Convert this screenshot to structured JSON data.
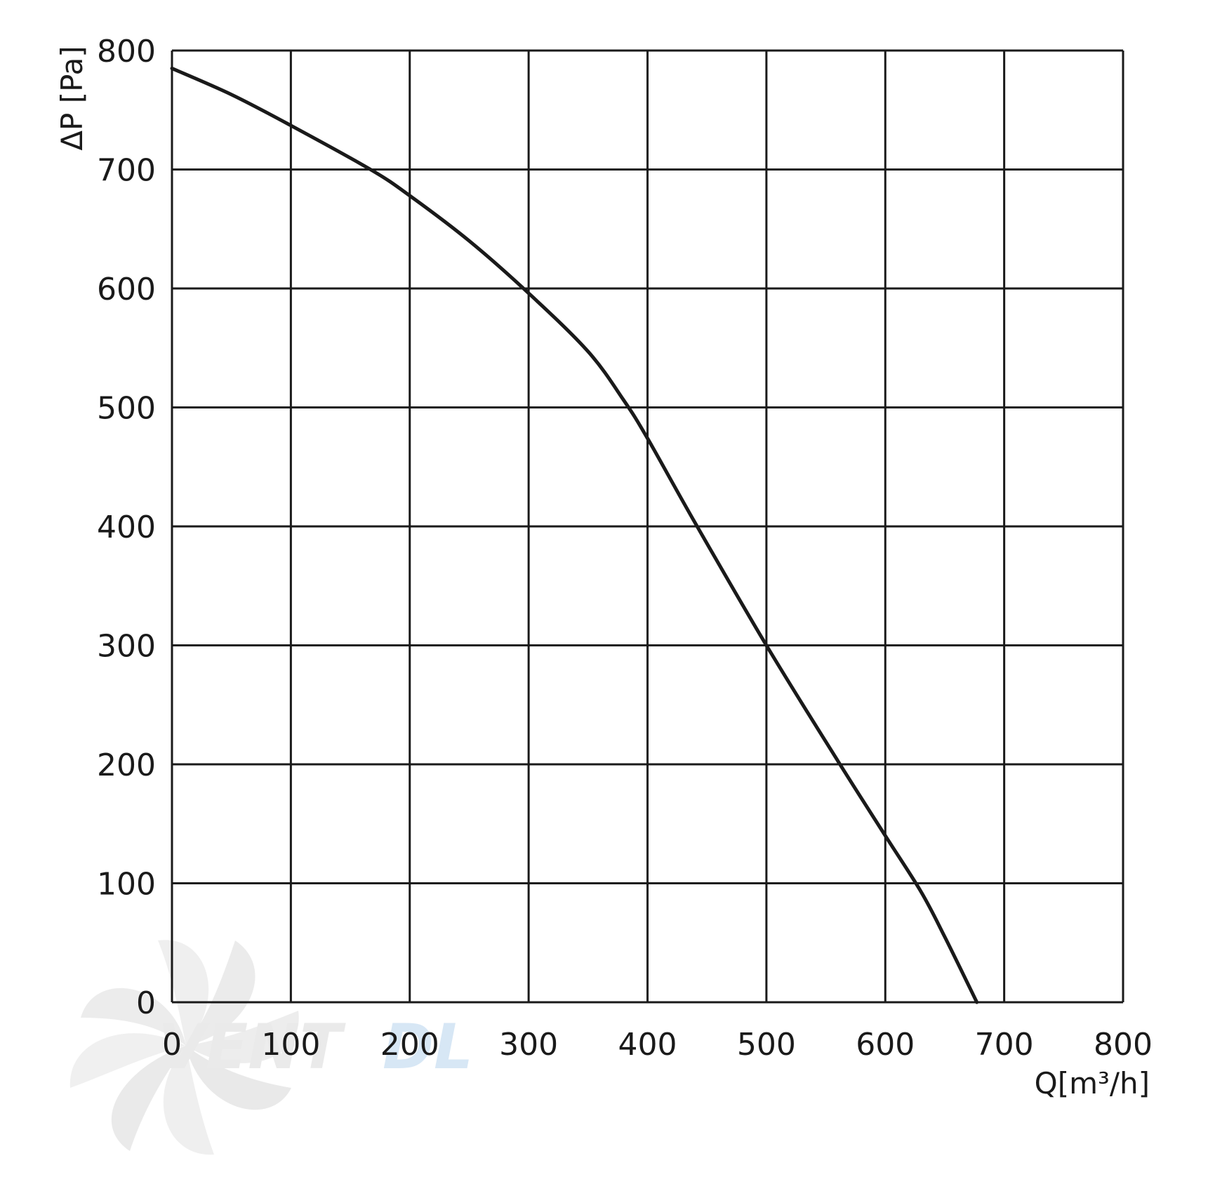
{
  "chart_data": {
    "type": "line",
    "xlabel": "Q[m³/h]",
    "ylabel": "ΔP [Pa]",
    "xlim": [
      0,
      800
    ],
    "ylim": [
      0,
      800
    ],
    "x_ticks": [
      0,
      100,
      200,
      300,
      400,
      500,
      600,
      700,
      800
    ],
    "y_ticks": [
      0,
      100,
      200,
      300,
      400,
      500,
      600,
      700,
      800
    ],
    "grid": true,
    "series": [
      {
        "color": "#1a1a1a",
        "points": [
          [
            0,
            785
          ],
          [
            50,
            763
          ],
          [
            100,
            737
          ],
          [
            167,
            700
          ],
          [
            200,
            678
          ],
          [
            250,
            640
          ],
          [
            300,
            596
          ],
          [
            350,
            547
          ],
          [
            380,
            506
          ],
          [
            400,
            474
          ],
          [
            440,
            403
          ],
          [
            500,
            300
          ],
          [
            560,
            203
          ],
          [
            600,
            140
          ],
          [
            630,
            93
          ],
          [
            650,
            55
          ],
          [
            677,
            0
          ]
        ]
      }
    ],
    "colors": {
      "grid": "#1a1a1a",
      "curve": "#1a1a1a",
      "background": "#ffffff"
    },
    "watermark": {
      "text_main": "VENT",
      "text_accent": "DL",
      "icon": "fan-icon",
      "main_color": "#d9d9d9",
      "accent_color": "#b8d4ee"
    }
  }
}
